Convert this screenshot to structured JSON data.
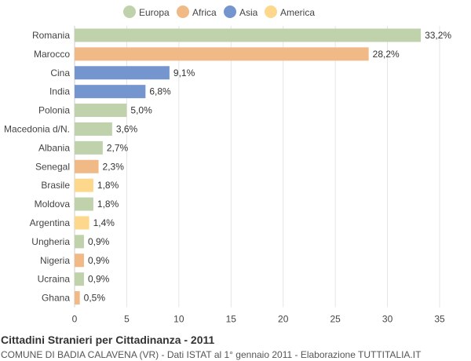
{
  "chart_data": {
    "type": "bar",
    "orientation": "horizontal",
    "title": "Cittadini Stranieri per Cittadinanza - 2011",
    "subtitle": "COMUNE DI BADIA CALAVENA (VR) - Dati ISTAT al 1° gennaio 2011 - Elaborazione TUTTITALIA.IT",
    "legend_position": "top-center",
    "legend": [
      {
        "name": "Europa",
        "color": "#c0d2ab"
      },
      {
        "name": "Africa",
        "color": "#f0b985"
      },
      {
        "name": "Asia",
        "color": "#7595cf"
      },
      {
        "name": "America",
        "color": "#fdd88c"
      }
    ],
    "categories": [
      "Romania",
      "Marocco",
      "Cina",
      "India",
      "Polonia",
      "Macedonia d/N.",
      "Albania",
      "Senegal",
      "Brasile",
      "Moldova",
      "Argentina",
      "Ungheria",
      "Nigeria",
      "Ucraina",
      "Ghana"
    ],
    "values": [
      33.2,
      28.2,
      9.1,
      6.8,
      5.0,
      3.6,
      2.7,
      2.3,
      1.8,
      1.8,
      1.4,
      0.9,
      0.9,
      0.9,
      0.5
    ],
    "value_labels": [
      "33,2%",
      "28,2%",
      "9,1%",
      "6,8%",
      "5,0%",
      "3,6%",
      "2,7%",
      "2,3%",
      "1,8%",
      "1,8%",
      "1,4%",
      "0,9%",
      "0,9%",
      "0,9%",
      "0,5%"
    ],
    "groups": [
      "Europa",
      "Africa",
      "Asia",
      "Asia",
      "Europa",
      "Europa",
      "Europa",
      "Africa",
      "America",
      "Europa",
      "America",
      "Europa",
      "Africa",
      "Europa",
      "Africa"
    ],
    "xlim": [
      0,
      35
    ],
    "xticks": [
      0,
      5,
      10,
      15,
      20,
      25,
      30,
      35
    ],
    "grid": true,
    "axis_color": "#cccccc",
    "grid_color": "#e5e5e5"
  }
}
